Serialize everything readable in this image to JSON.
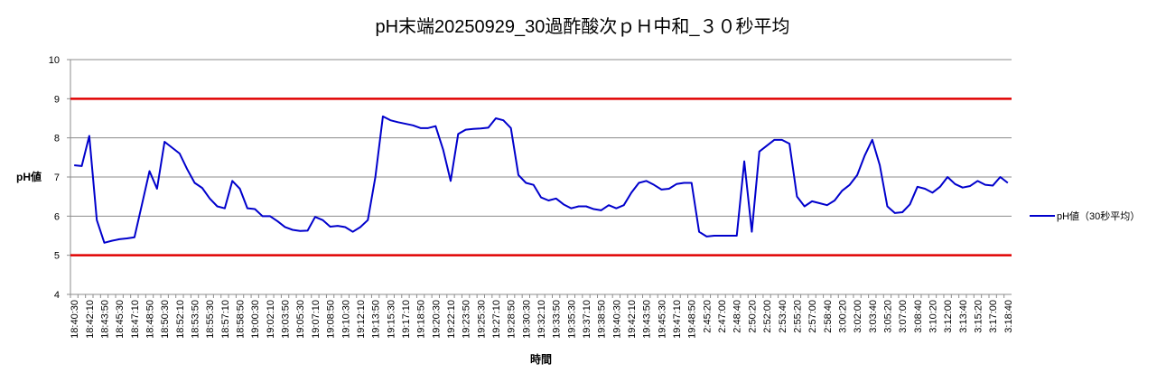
{
  "chart_data": {
    "type": "line",
    "title": "pH末端20250929_30過酢酸次ｐＨ中和_３０秒平均",
    "x_label": "時間",
    "y_label": "pH値",
    "categories": [
      "18:40:30",
      null,
      "18:42:10",
      null,
      "18:43:50",
      null,
      "18:45:30",
      null,
      "18:47:10",
      null,
      "18:48:50",
      null,
      "18:50:30",
      null,
      "18:52:10",
      null,
      "18:53:50",
      null,
      "18:55:30",
      null,
      "18:57:10",
      null,
      "18:58:50",
      null,
      "19:00:30",
      null,
      "19:02:10",
      null,
      "19:03:50",
      null,
      "19:05:30",
      null,
      "19:07:10",
      null,
      "19:08:50",
      null,
      "19:10:30",
      null,
      "19:12:10",
      null,
      "19:13:50",
      null,
      "19:15:30",
      null,
      "19:17:10",
      null,
      "19:18:50",
      null,
      "19:20:30",
      null,
      "19:22:10",
      null,
      "19:23:50",
      null,
      "19:25:30",
      null,
      "19:27:10",
      null,
      "19:28:50",
      null,
      "19:30:30",
      null,
      "19:32:10",
      null,
      "19:33:50",
      null,
      "19:35:30",
      null,
      "19:37:10",
      null,
      "19:38:50",
      null,
      "19:40:30",
      null,
      "19:42:10",
      null,
      "19:43:50",
      null,
      "19:45:30",
      null,
      "19:47:10",
      null,
      "19:48:50",
      null,
      "2:45:20",
      null,
      "2:47:00",
      null,
      "2:48:40",
      null,
      "2:50:20",
      null,
      "2:52:00",
      null,
      "2:53:40",
      null,
      "2:55:20",
      null,
      "2:57:00",
      null,
      "2:58:40",
      null,
      "3:00:20",
      null,
      "3:02:00",
      null,
      "3:03:40",
      null,
      "3:05:20",
      null,
      "3:07:00",
      null,
      "3:08:40",
      null,
      "3:10:20",
      null,
      "3:12:00",
      null,
      "3:13:40",
      null,
      "3:15:20",
      null,
      "3:17:00",
      null,
      "3:18:40"
    ],
    "series": [
      {
        "name": "pH値（30秒平均）",
        "color": "#0000cc",
        "values": [
          7.3,
          7.28,
          8.05,
          5.9,
          5.32,
          5.37,
          5.41,
          5.43,
          5.46,
          6.3,
          7.15,
          6.7,
          7.9,
          7.75,
          7.6,
          7.2,
          6.85,
          6.72,
          6.45,
          6.25,
          6.2,
          6.9,
          6.7,
          6.2,
          6.18,
          6.0,
          6.0,
          5.87,
          5.72,
          5.65,
          5.62,
          5.63,
          5.98,
          5.9,
          5.73,
          5.75,
          5.72,
          5.6,
          5.72,
          5.9,
          7.0,
          8.55,
          8.45,
          8.4,
          8.36,
          8.32,
          8.25,
          8.25,
          8.3,
          7.7,
          6.9,
          8.1,
          8.21,
          8.23,
          8.24,
          8.26,
          8.5,
          8.45,
          8.25,
          7.05,
          6.85,
          6.8,
          6.48,
          6.4,
          6.45,
          6.3,
          6.2,
          6.25,
          6.25,
          6.18,
          6.15,
          6.28,
          6.2,
          6.28,
          6.6,
          6.85,
          6.9,
          6.8,
          6.68,
          6.7,
          6.82,
          6.85,
          6.85,
          5.6,
          5.48,
          5.5,
          5.5,
          5.5,
          5.5,
          7.4,
          5.6,
          7.65,
          7.8,
          7.95,
          7.95,
          7.85,
          6.5,
          6.25,
          6.38,
          6.33,
          6.28,
          6.4,
          6.65,
          6.8,
          7.05,
          7.55,
          7.95,
          7.3,
          6.25,
          6.08,
          6.1,
          6.3,
          6.75,
          6.7,
          6.6,
          6.75,
          7.0,
          6.82,
          6.73,
          6.77,
          6.9,
          6.8,
          6.78,
          7.0,
          6.85
        ]
      }
    ],
    "reference_lines": [
      {
        "value": 9,
        "color": "#e00000"
      },
      {
        "value": 5,
        "color": "#e00000"
      }
    ],
    "ylim": [
      4,
      10
    ],
    "yticks": [
      4,
      5,
      6,
      7,
      8,
      9,
      10
    ],
    "grid": true,
    "legend": "right"
  }
}
